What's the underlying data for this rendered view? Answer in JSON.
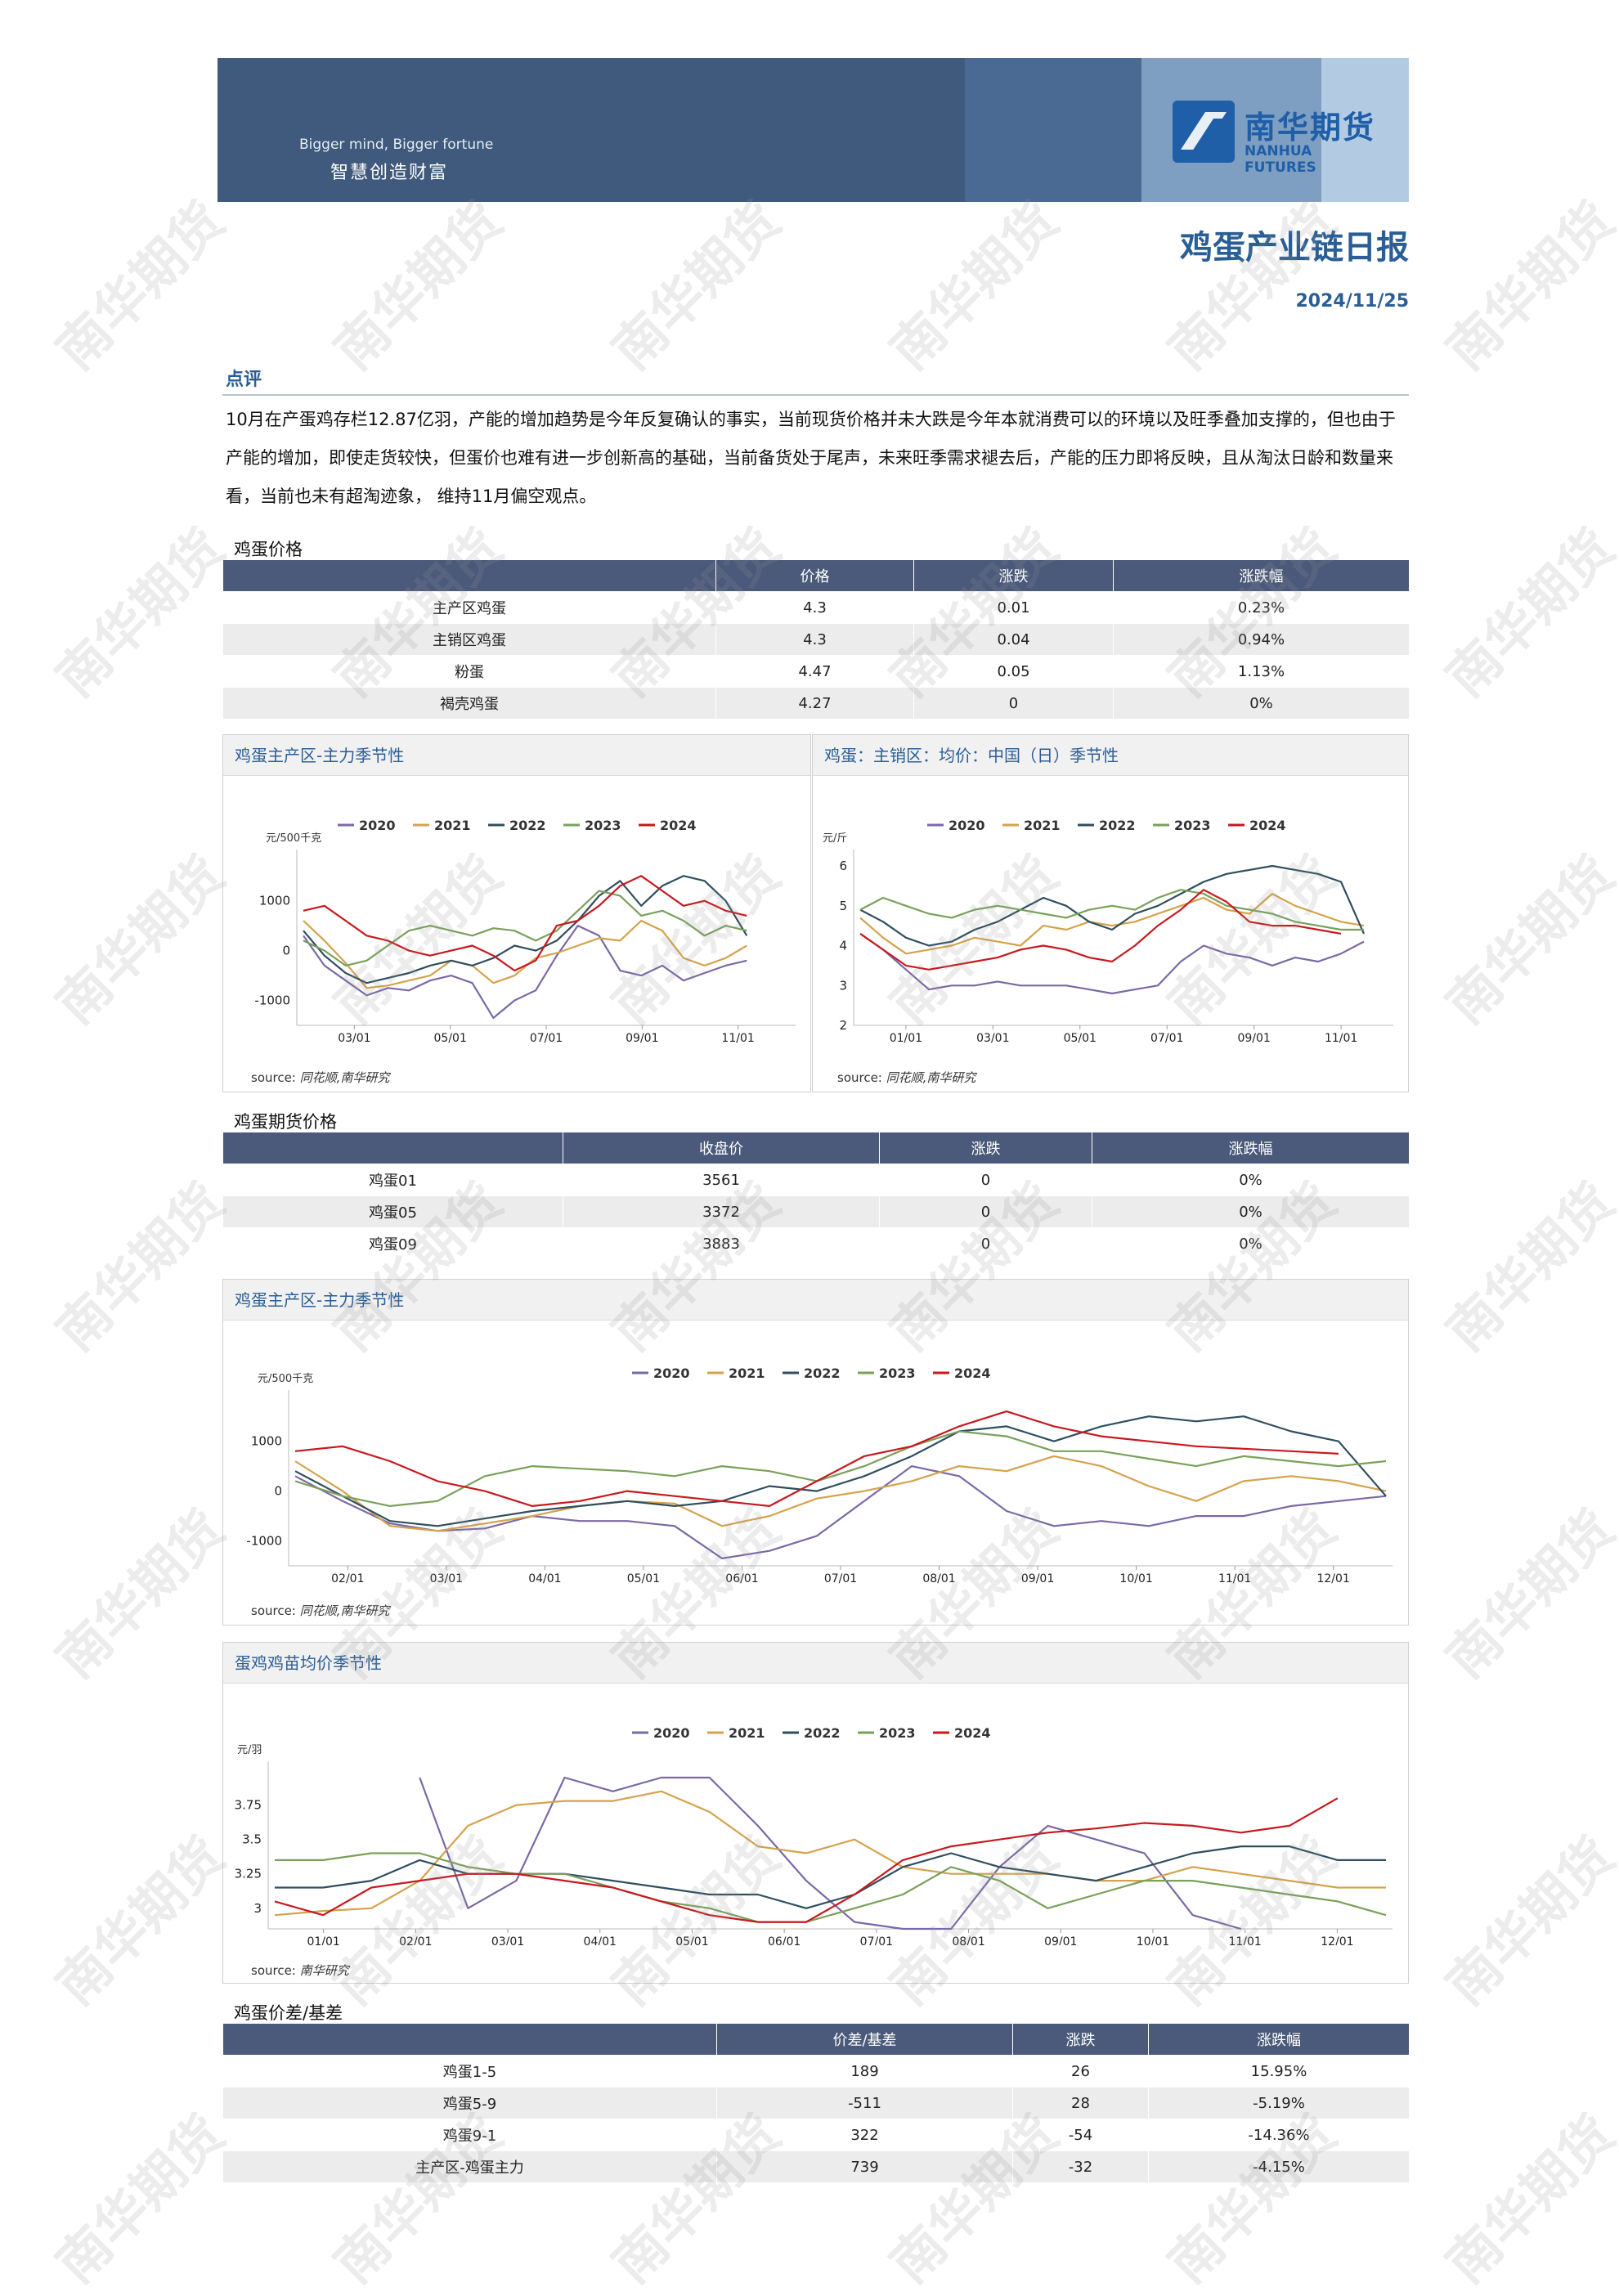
{
  "header": {
    "slogan_en": "Bigger mind, Bigger fortune",
    "slogan_cn": "智慧创造财富",
    "logo_cn": "南华期货",
    "logo_en": "NANHUA FUTURES",
    "logo_color": "#1e5fa8"
  },
  "report": {
    "title": "鸡蛋产业链日报",
    "date": "2024/11/25"
  },
  "watermark": "南华期货",
  "comment": {
    "heading": "点评",
    "body": "10月在产蛋鸡存栏12.87亿羽，产能的增加趋势是今年反复确认的事实，当前现货价格并未大跌是今年本就消费可以的环境以及旺季叠加支撑的，但也由于产能的增加，即使走货较快，但蛋价也难有进一步创新高的基础，当前备货处于尾声，未来旺季需求褪去后，产能的压力即将反映，且从淘汰日龄和数量来看，当前也未有超淘迹象， 维持11月偏空观点。"
  },
  "spot_table": {
    "title": "鸡蛋价格",
    "headers": [
      "",
      "价格",
      "涨跌",
      "涨跌幅"
    ],
    "rows": [
      [
        "主产区鸡蛋",
        "4.3",
        "0.01",
        "0.23%"
      ],
      [
        "主销区鸡蛋",
        "4.3",
        "0.04",
        "0.94%"
      ],
      [
        "粉蛋",
        "4.47",
        "0.05",
        "1.13%"
      ],
      [
        "褐壳鸡蛋",
        "4.27",
        "0",
        "0%"
      ]
    ]
  },
  "futures_table": {
    "title": "鸡蛋期货价格",
    "headers": [
      "",
      "收盘价",
      "涨跌",
      "涨跌幅"
    ],
    "rows": [
      [
        "鸡蛋01",
        "3561",
        "0",
        "0%"
      ],
      [
        "鸡蛋05",
        "3372",
        "0",
        "0%"
      ],
      [
        "鸡蛋09",
        "3883",
        "0",
        "0%"
      ]
    ]
  },
  "spread_table": {
    "title": "鸡蛋价差/基差",
    "headers": [
      "",
      "价差/基差",
      "涨跌",
      "涨跌幅"
    ],
    "rows": [
      [
        "鸡蛋1-5",
        "189",
        "26",
        "15.95%"
      ],
      [
        "鸡蛋5-9",
        "-511",
        "28",
        "-5.19%"
      ],
      [
        "鸡蛋9-1",
        "322",
        "-54",
        "-14.36%"
      ],
      [
        "主产区-鸡蛋主力",
        "739",
        "-32",
        "-4.15%"
      ]
    ]
  },
  "sources": {
    "label": "source:",
    "ths": "同花顺,南华研究",
    "nh": "南华研究"
  },
  "chart_data": [
    {
      "id": "c1",
      "type": "line",
      "title": "鸡蛋主产区-主力季节性",
      "ylabel": "元/500千克",
      "ylim": [
        -1500,
        1700
      ],
      "yticks": [
        1000,
        0,
        -1000
      ],
      "xticks": [
        "03/01",
        "05/01",
        "07/01",
        "09/01",
        "11/01"
      ],
      "series": [
        {
          "name": "2020",
          "color": "#7b68a6",
          "values": [
            300,
            -300,
            -600,
            -900,
            -750,
            -800,
            -600,
            -500,
            -650,
            -1350,
            -1000,
            -800,
            -100,
            500,
            300,
            -400,
            -500,
            -300,
            -600,
            -450,
            -300,
            -200
          ]
        },
        {
          "name": "2021",
          "color": "#d4a24c",
          "values": [
            600,
            200,
            -250,
            -750,
            -700,
            -600,
            -500,
            -200,
            -300,
            -650,
            -500,
            -150,
            -50,
            100,
            250,
            200,
            600,
            400,
            -150,
            -300,
            -150,
            100
          ]
        },
        {
          "name": "2022",
          "color": "#2f4f5f",
          "values": [
            400,
            -100,
            -450,
            -650,
            -550,
            -450,
            -300,
            -200,
            -300,
            -150,
            100,
            0,
            200,
            600,
            1100,
            1400,
            900,
            1300,
            1500,
            1400,
            1000,
            300
          ]
        },
        {
          "name": "2023",
          "color": "#7aa05a",
          "values": [
            200,
            0,
            -300,
            -200,
            100,
            400,
            500,
            400,
            300,
            450,
            400,
            200,
            400,
            800,
            1200,
            1100,
            700,
            800,
            600,
            300,
            500,
            400
          ]
        },
        {
          "name": "2024",
          "color": "#c8191e",
          "values": [
            800,
            900,
            600,
            300,
            200,
            0,
            -100,
            0,
            100,
            -100,
            -400,
            -200,
            500,
            600,
            900,
            1300,
            1500,
            1200,
            900,
            1000,
            800,
            700
          ]
        }
      ]
    },
    {
      "id": "c2",
      "type": "line",
      "title": "鸡蛋：主销区：均价：中国（日）季节性",
      "ylabel": "元/斤",
      "ylim": [
        2,
        6
      ],
      "yticks": [
        6,
        5,
        4,
        3,
        2
      ],
      "xticks": [
        "01/01",
        "03/01",
        "05/01",
        "07/01",
        "09/01",
        "11/01"
      ],
      "series": [
        {
          "name": "2020",
          "color": "#7b68a6",
          "values": [
            4.3,
            3.9,
            3.4,
            2.9,
            3.0,
            3.0,
            3.1,
            3.0,
            3.0,
            3.0,
            2.9,
            2.8,
            2.9,
            3.0,
            3.6,
            4.0,
            3.8,
            3.7,
            3.5,
            3.7,
            3.6,
            3.8,
            4.1
          ]
        },
        {
          "name": "2021",
          "color": "#d4a24c",
          "values": [
            4.7,
            4.2,
            3.8,
            3.9,
            4.0,
            4.2,
            4.1,
            4.0,
            4.5,
            4.4,
            4.6,
            4.5,
            4.6,
            4.8,
            5.0,
            5.2,
            4.9,
            4.8,
            5.3,
            5.0,
            4.8,
            4.6,
            4.5
          ]
        },
        {
          "name": "2022",
          "color": "#2f4f5f",
          "values": [
            4.9,
            4.6,
            4.2,
            4.0,
            4.1,
            4.4,
            4.6,
            4.9,
            5.2,
            5.0,
            4.6,
            4.4,
            4.8,
            5.0,
            5.3,
            5.6,
            5.8,
            5.9,
            6.1,
            5.9,
            5.8,
            5.6,
            4.3
          ]
        },
        {
          "name": "2023",
          "color": "#7aa05a",
          "values": [
            4.9,
            5.2,
            5.0,
            4.8,
            4.7,
            4.9,
            5.0,
            4.9,
            4.8,
            4.7,
            4.9,
            5.0,
            4.9,
            5.2,
            5.4,
            5.3,
            5.0,
            4.9,
            4.8,
            4.6,
            4.5,
            4.4,
            4.4
          ]
        },
        {
          "name": "2024",
          "color": "#c8191e",
          "values": [
            4.3,
            3.9,
            3.5,
            3.4,
            3.5,
            3.6,
            3.7,
            3.9,
            4.0,
            3.9,
            3.7,
            3.6,
            4.0,
            4.5,
            4.9,
            5.4,
            5.1,
            4.6,
            4.5,
            4.5,
            4.4,
            4.3
          ]
        }
      ]
    },
    {
      "id": "c3",
      "type": "line",
      "title": "鸡蛋主产区-主力季节性",
      "ylabel": "元/500千克",
      "ylim": [
        -1500,
        1700
      ],
      "yticks": [
        1000,
        0,
        -1000
      ],
      "xticks": [
        "02/01",
        "03/01",
        "04/01",
        "05/01",
        "06/01",
        "07/01",
        "08/01",
        "09/01",
        "10/01",
        "11/01",
        "12/01"
      ],
      "series": [
        {
          "name": "2020",
          "color": "#7b68a6",
          "values": [
            300,
            -200,
            -650,
            -800,
            -750,
            -500,
            -600,
            -600,
            -700,
            -1350,
            -1200,
            -900,
            -200,
            500,
            300,
            -400,
            -700,
            -600,
            -700,
            -500,
            -500,
            -300,
            -200,
            -100
          ]
        },
        {
          "name": "2021",
          "color": "#d4a24c",
          "values": [
            600,
            0,
            -700,
            -800,
            -650,
            -500,
            -300,
            -200,
            -250,
            -700,
            -500,
            -150,
            0,
            200,
            500,
            400,
            700,
            500,
            100,
            -200,
            200,
            300,
            200,
            0
          ]
        },
        {
          "name": "2022",
          "color": "#2f4f5f",
          "values": [
            400,
            -100,
            -600,
            -700,
            -550,
            -400,
            -300,
            -200,
            -300,
            -200,
            100,
            0,
            300,
            700,
            1200,
            1300,
            1000,
            1300,
            1500,
            1400,
            1500,
            1200,
            1000,
            -100
          ]
        },
        {
          "name": "2023",
          "color": "#7aa05a",
          "values": [
            200,
            -100,
            -300,
            -200,
            300,
            500,
            450,
            400,
            300,
            500,
            400,
            200,
            500,
            900,
            1200,
            1100,
            800,
            800,
            650,
            500,
            700,
            600,
            500,
            600
          ]
        },
        {
          "name": "2024",
          "color": "#c8191e",
          "values": [
            800,
            900,
            600,
            200,
            0,
            -300,
            -200,
            0,
            -100,
            -200,
            -300,
            200,
            700,
            900,
            1300,
            1600,
            1300,
            1100,
            1000,
            900,
            850,
            800,
            750
          ]
        }
      ]
    },
    {
      "id": "c4",
      "type": "line",
      "title": "蛋鸡鸡苗均价季节性",
      "ylabel": "元/羽",
      "ylim": [
        2.85,
        3.95
      ],
      "yticks": [
        3.75,
        3.5,
        3.25,
        3
      ],
      "xticks": [
        "01/01",
        "02/01",
        "03/01",
        "04/01",
        "05/01",
        "06/01",
        "07/01",
        "08/01",
        "09/01",
        "10/01",
        "11/01",
        "12/01"
      ],
      "series": [
        {
          "name": "2020",
          "color": "#7b68a6",
          "values": [
            null,
            null,
            null,
            3.95,
            3.0,
            3.2,
            3.95,
            3.85,
            3.95,
            3.95,
            3.6,
            3.2,
            2.9,
            2.85,
            2.85,
            3.3,
            3.6,
            3.5,
            3.4,
            2.95,
            2.85,
            null,
            null,
            null
          ]
        },
        {
          "name": "2021",
          "color": "#d4a24c",
          "values": [
            2.95,
            2.98,
            3.0,
            3.2,
            3.6,
            3.75,
            3.78,
            3.78,
            3.85,
            3.7,
            3.45,
            3.4,
            3.5,
            3.3,
            3.25,
            3.25,
            3.25,
            3.2,
            3.2,
            3.3,
            3.25,
            3.2,
            3.15,
            3.15
          ]
        },
        {
          "name": "2022",
          "color": "#2f4f5f",
          "values": [
            3.15,
            3.15,
            3.2,
            3.35,
            3.25,
            3.25,
            3.25,
            3.2,
            3.15,
            3.1,
            3.1,
            3.0,
            3.1,
            3.3,
            3.4,
            3.3,
            3.25,
            3.2,
            3.3,
            3.4,
            3.45,
            3.45,
            3.35,
            3.35
          ]
        },
        {
          "name": "2023",
          "color": "#7aa05a",
          "values": [
            3.35,
            3.35,
            3.4,
            3.4,
            3.3,
            3.25,
            3.25,
            3.15,
            3.05,
            3.0,
            2.9,
            2.9,
            3.0,
            3.1,
            3.3,
            3.2,
            3.0,
            3.1,
            3.2,
            3.2,
            3.15,
            3.1,
            3.05,
            2.95
          ]
        },
        {
          "name": "2024",
          "color": "#c8191e",
          "values": [
            3.05,
            2.95,
            3.15,
            3.2,
            3.25,
            3.25,
            3.2,
            3.15,
            3.05,
            2.95,
            2.9,
            2.9,
            3.1,
            3.35,
            3.45,
            3.5,
            3.55,
            3.58,
            3.62,
            3.6,
            3.55,
            3.6,
            3.8
          ]
        }
      ]
    }
  ]
}
